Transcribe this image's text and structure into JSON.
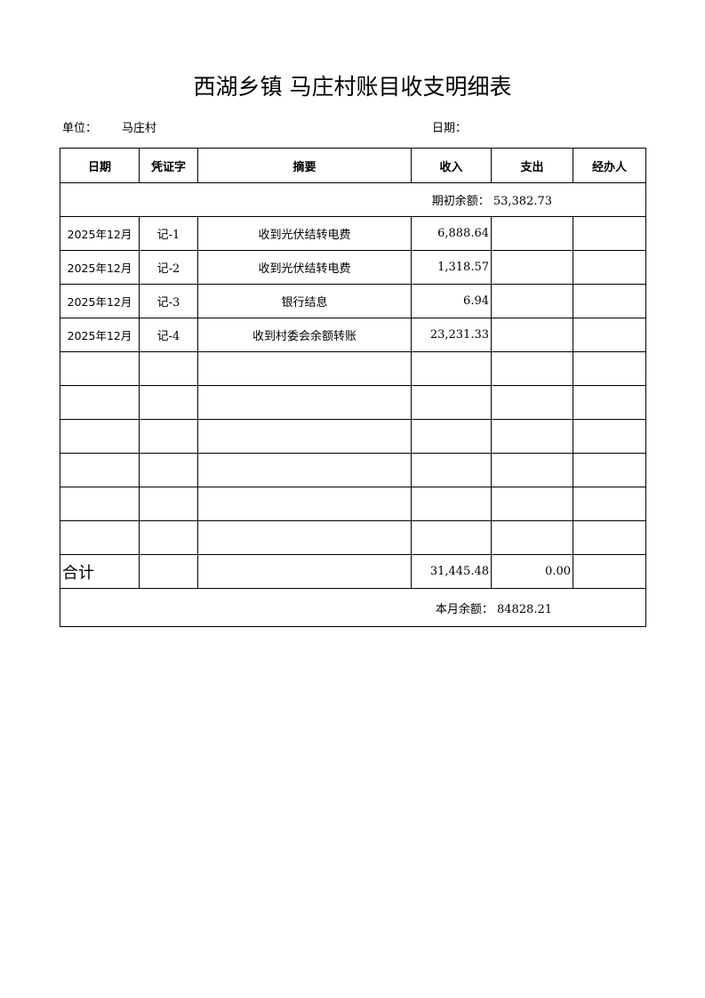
{
  "title": "西湖乡镇 马庄村账目收支明细表",
  "unit_label": "单位：",
  "unit_value": "马庄村",
  "date_label": "日期：",
  "columns": [
    "日期",
    "凭证字",
    "摘要",
    "收入",
    "支出",
    "经办人"
  ],
  "opening_balance": "期初余额：  53,382.73",
  "rows": [
    {
      "date": "2025年12月",
      "voucher": "记-1",
      "summary": "收到光伏结转电费",
      "income": "6,888.64",
      "expense": "",
      "handler": ""
    },
    {
      "date": "2025年12月",
      "voucher": "记-2",
      "summary": "收到光伏结转电费",
      "income": "1,318.57",
      "expense": "",
      "handler": ""
    },
    {
      "date": "2025年12月",
      "voucher": "记-3",
      "summary": "银行结息",
      "income": "6.94",
      "expense": "",
      "handler": ""
    },
    {
      "date": "2025年12月",
      "voucher": "记-4",
      "summary": "收到村委会余额转账",
      "income": "23,231.33",
      "expense": "",
      "handler": ""
    },
    {
      "date": "",
      "voucher": "",
      "summary": "",
      "income": "",
      "expense": "",
      "handler": ""
    },
    {
      "date": "",
      "voucher": "",
      "summary": "",
      "income": "",
      "expense": "",
      "handler": ""
    },
    {
      "date": "",
      "voucher": "",
      "summary": "",
      "income": "",
      "expense": "",
      "handler": ""
    },
    {
      "date": "",
      "voucher": "",
      "summary": "",
      "income": "",
      "expense": "",
      "handler": ""
    },
    {
      "date": "",
      "voucher": "",
      "summary": "",
      "income": "",
      "expense": "",
      "handler": ""
    },
    {
      "date": "",
      "voucher": "",
      "summary": "",
      "income": "",
      "expense": "",
      "handler": ""
    }
  ],
  "total": {
    "label": "合计",
    "income": "31,445.48",
    "expense": "0.00"
  },
  "closing_balance": "本月余额：  84828.21"
}
